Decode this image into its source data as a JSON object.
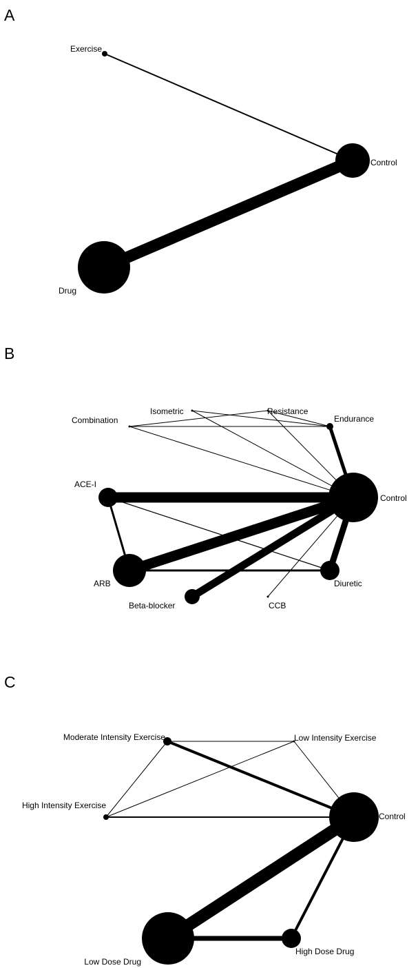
{
  "colors": {
    "ink": "#000000",
    "background": "#ffffff"
  },
  "panels": [
    {
      "letter": "A",
      "nodes": [
        {
          "id": "exercise",
          "label": "Exercise"
        },
        {
          "id": "control",
          "label": "Control"
        },
        {
          "id": "drug",
          "label": "Drug"
        }
      ],
      "edges": [
        {
          "from": "exercise",
          "to": "control"
        },
        {
          "from": "control",
          "to": "drug"
        }
      ]
    },
    {
      "letter": "B",
      "nodes": [
        {
          "id": "isometric",
          "label": "Isometric"
        },
        {
          "id": "resistance",
          "label": "Resistance"
        },
        {
          "id": "combination",
          "label": "Combination"
        },
        {
          "id": "endurance",
          "label": "Endurance"
        },
        {
          "id": "ace-i",
          "label": "ACE-I"
        },
        {
          "id": "control",
          "label": "Control"
        },
        {
          "id": "arb",
          "label": "ARB"
        },
        {
          "id": "diuretic",
          "label": "Diuretic"
        },
        {
          "id": "beta-blocker",
          "label": "Beta-blocker"
        },
        {
          "id": "ccb",
          "label": "CCB"
        }
      ],
      "edges": [
        {
          "from": "isometric",
          "to": "endurance"
        },
        {
          "from": "isometric",
          "to": "control"
        },
        {
          "from": "resistance",
          "to": "combination"
        },
        {
          "from": "resistance",
          "to": "endurance"
        },
        {
          "from": "resistance",
          "to": "control"
        },
        {
          "from": "combination",
          "to": "endurance"
        },
        {
          "from": "combination",
          "to": "control"
        },
        {
          "from": "endurance",
          "to": "control"
        },
        {
          "from": "ace-i",
          "to": "control"
        },
        {
          "from": "ace-i",
          "to": "arb"
        },
        {
          "from": "ace-i",
          "to": "diuretic"
        },
        {
          "from": "arb",
          "to": "control"
        },
        {
          "from": "arb",
          "to": "diuretic"
        },
        {
          "from": "diuretic",
          "to": "control"
        },
        {
          "from": "beta-blocker",
          "to": "control"
        },
        {
          "from": "ccb",
          "to": "control"
        }
      ]
    },
    {
      "letter": "C",
      "nodes": [
        {
          "id": "moderate-intensity-exercise",
          "label": "Moderate Intensity Exercise"
        },
        {
          "id": "low-intensity-exercise",
          "label": "Low Intensity Exercise"
        },
        {
          "id": "high-intensity-exercise",
          "label": "High Intensity Exercise"
        },
        {
          "id": "control",
          "label": "Control"
        },
        {
          "id": "low-dose-drug",
          "label": "Low Dose Drug"
        },
        {
          "id": "high-dose-drug",
          "label": "High Dose Drug"
        }
      ],
      "edges": [
        {
          "from": "moderate-intensity-exercise",
          "to": "low-intensity-exercise"
        },
        {
          "from": "moderate-intensity-exercise",
          "to": "high-intensity-exercise"
        },
        {
          "from": "moderate-intensity-exercise",
          "to": "control"
        },
        {
          "from": "low-intensity-exercise",
          "to": "high-intensity-exercise"
        },
        {
          "from": "low-intensity-exercise",
          "to": "control"
        },
        {
          "from": "high-intensity-exercise",
          "to": "control"
        },
        {
          "from": "control",
          "to": "low-dose-drug"
        },
        {
          "from": "control",
          "to": "high-dose-drug"
        },
        {
          "from": "low-dose-drug",
          "to": "high-dose-drug"
        }
      ]
    }
  ]
}
